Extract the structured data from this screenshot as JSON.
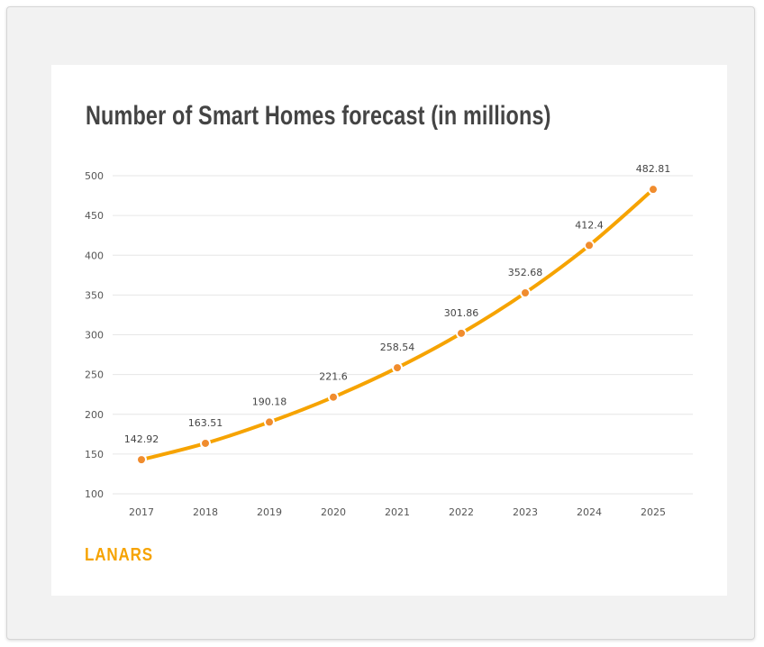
{
  "card": {
    "title": "Number of Smart Homes forecast (in millions)",
    "brand": "LANARS"
  },
  "colors": {
    "line": "#f6a300",
    "marker": "#f08c2e",
    "grid": "#e6e6e6",
    "brand": "#f6a300"
  },
  "chart_data": {
    "type": "line",
    "title": "Number of Smart Homes forecast (in millions)",
    "xlabel": "",
    "ylabel": "",
    "categories": [
      "2017",
      "2018",
      "2019",
      "2020",
      "2021",
      "2022",
      "2023",
      "2024",
      "2025"
    ],
    "series": [
      {
        "name": "Smart Homes",
        "values": [
          142.92,
          163.51,
          190.18,
          221.6,
          258.54,
          301.86,
          352.68,
          412.4,
          482.81
        ],
        "labels": [
          "142.92",
          "163.51",
          "190.18",
          "221.6",
          "258.54",
          "301.86",
          "352.68",
          "412.4",
          "482.81"
        ]
      }
    ],
    "ylim": [
      100,
      500
    ],
    "yticks": [
      100,
      150,
      200,
      250,
      300,
      350,
      400,
      450,
      500
    ],
    "grid": true,
    "legend": "none"
  }
}
